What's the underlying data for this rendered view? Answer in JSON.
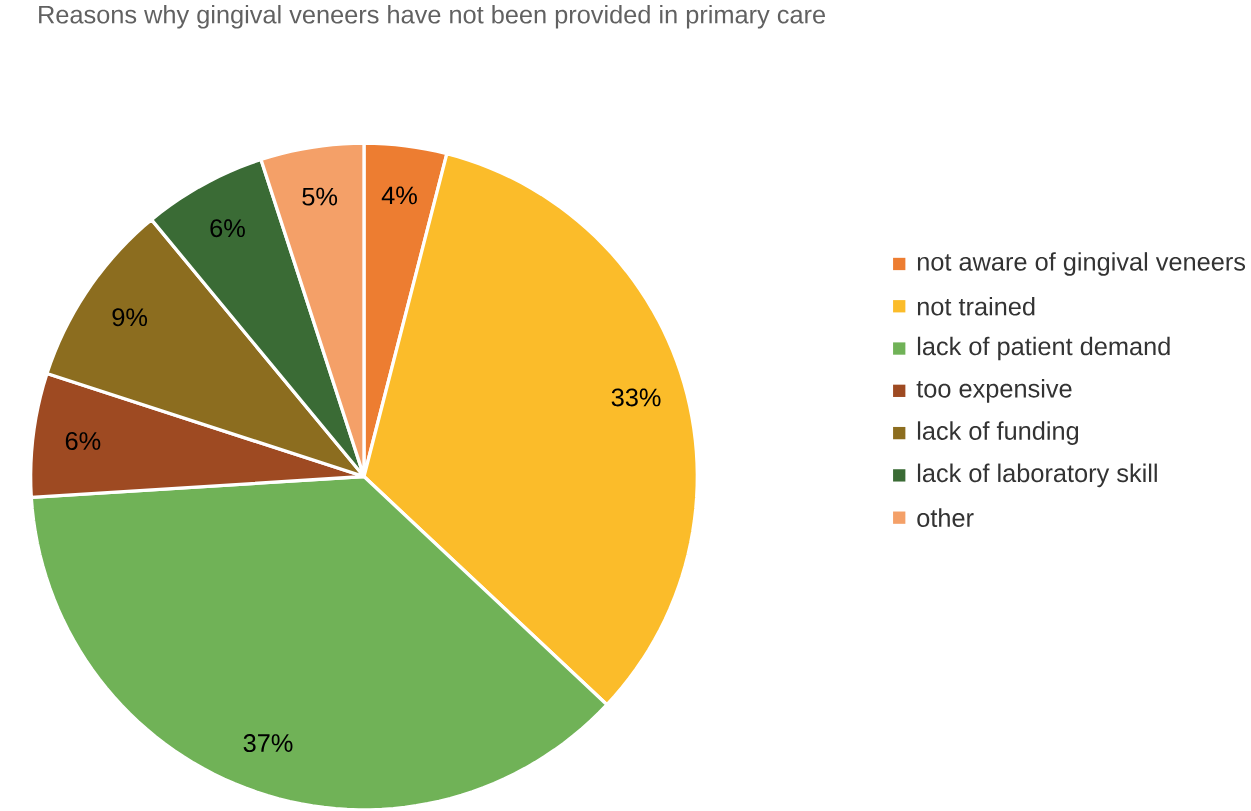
{
  "chart_data": {
    "type": "pie",
    "title": "Reasons why gingival veneers have not been provided in primary care",
    "categories": [
      "not aware of gingival veneers",
      "not trained",
      "lack of patient demand",
      "too expensive",
      "lack of funding",
      "lack of laboratory skill",
      "other"
    ],
    "values": [
      4,
      33,
      37,
      6,
      9,
      6,
      5
    ],
    "colors": [
      "#ed7d31",
      "#fbbc2a",
      "#70b257",
      "#9e4a22",
      "#8c6d1f",
      "#3a6b35",
      "#f4a068"
    ],
    "value_labels": [
      "4%",
      "33%",
      "37%",
      "6%",
      "9%",
      "6%",
      "5%"
    ],
    "legend": "right"
  }
}
